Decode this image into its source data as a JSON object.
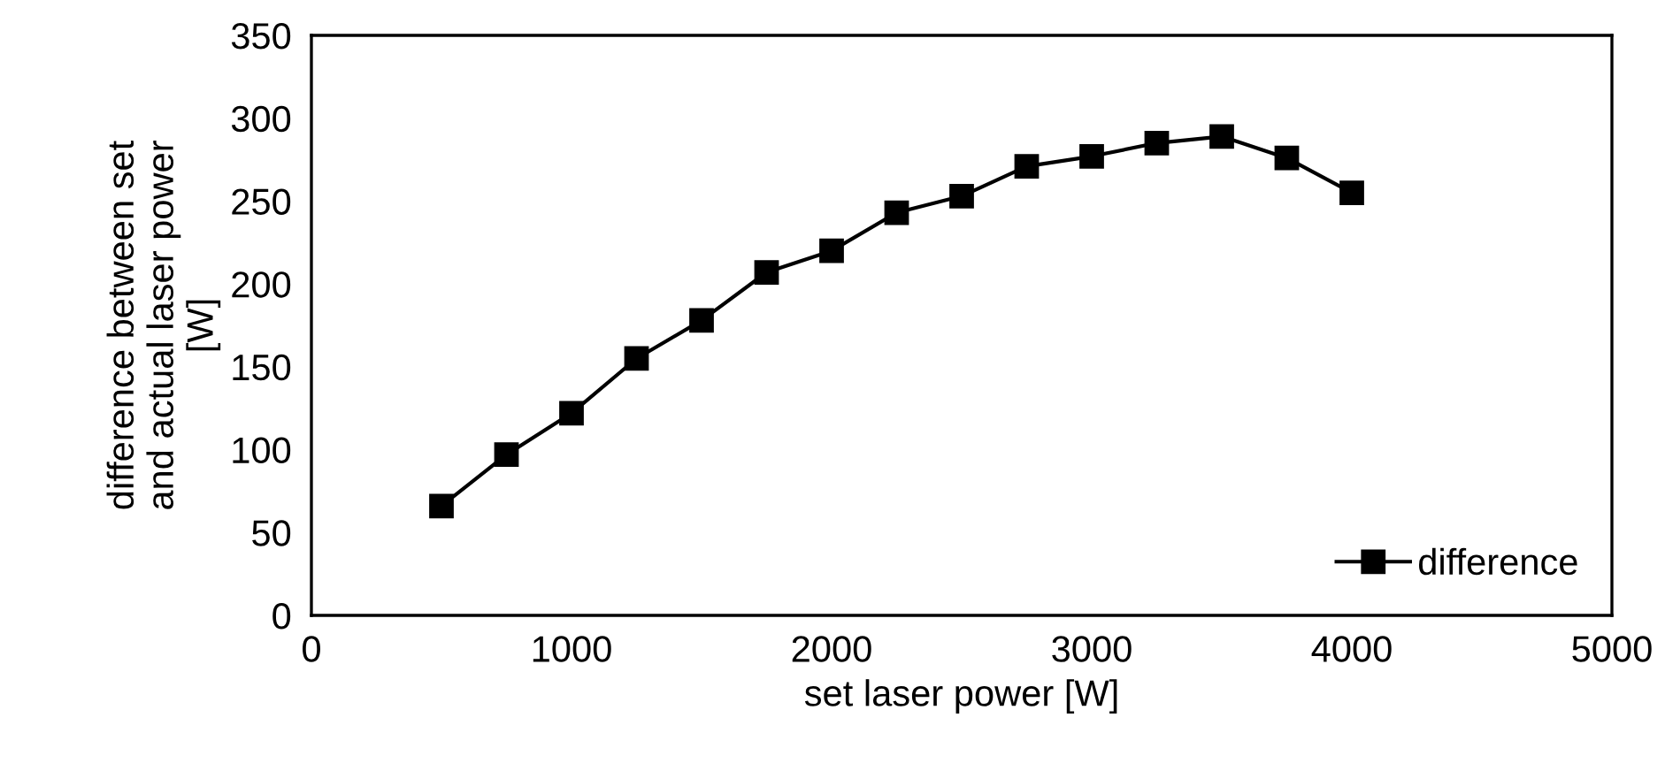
{
  "chart_data": {
    "type": "line",
    "xlabel": "set laser power [W]",
    "ylabel": "difference between set\nand actual laser power\n[W]",
    "x": [
      500,
      750,
      1000,
      1250,
      1500,
      1750,
      2000,
      2250,
      2500,
      2750,
      3000,
      3250,
      3500,
      3750,
      4000
    ],
    "series": [
      {
        "name": "difference",
        "color": "#000000",
        "values": [
          66,
          97,
          122,
          155,
          178,
          207,
          220,
          243,
          253,
          271,
          277,
          285,
          289,
          276,
          255
        ]
      }
    ],
    "xlim": [
      0,
      5000
    ],
    "xticks": [
      0,
      1000,
      2000,
      3000,
      4000,
      5000
    ],
    "ylim": [
      0,
      350
    ],
    "yticks": [
      0,
      50,
      100,
      150,
      200,
      250,
      300,
      350
    ],
    "marker": "square",
    "line_style": "solid",
    "legend": "bottom right",
    "grid": false
  }
}
